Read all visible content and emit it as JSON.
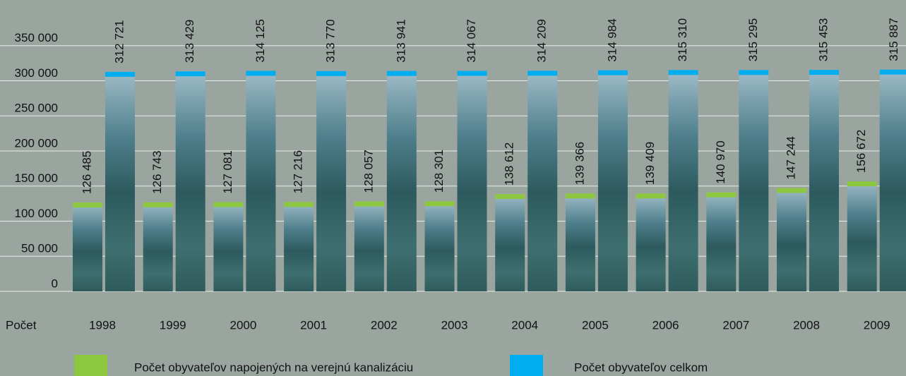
{
  "chart_data": {
    "type": "bar",
    "categories": [
      "1998",
      "1999",
      "2000",
      "2001",
      "2002",
      "2003",
      "2004",
      "2005",
      "2006",
      "2007",
      "2008",
      "2009"
    ],
    "x_label": "Počet",
    "series": [
      {
        "name": "Počet obyvateľov napojených na verejnú kanalizáciu",
        "color": "#8dc63f",
        "values": [
          126485,
          126743,
          127081,
          127216,
          128057,
          128301,
          138612,
          139366,
          139409,
          140970,
          147244,
          156672
        ],
        "value_labels": [
          "126 485",
          "126 743",
          "127 081",
          "127 216",
          "128 057",
          "128 301",
          "138 612",
          "139 366",
          "139 409",
          "140 970",
          "147 244",
          "156 672"
        ]
      },
      {
        "name": "Počet obyvateľov celkom",
        "color": "#00aeef",
        "values": [
          312721,
          313429,
          314125,
          313770,
          313941,
          314067,
          314209,
          314984,
          315310,
          315295,
          315453,
          315887
        ],
        "value_labels": [
          "312 721",
          "313 429",
          "314 125",
          "313 770",
          "313 941",
          "314 067",
          "314 209",
          "314 984",
          "315 310",
          "315 295",
          "315 453",
          "315 887"
        ]
      }
    ],
    "ylim": [
      0,
      400000
    ],
    "yticks": [
      0,
      {
        "value": 50000,
        "label": "50 000"
      },
      {
        "value": 100000,
        "label": "100 000"
      },
      {
        "value": 150000,
        "label": "150 000"
      },
      {
        "value": 200000,
        "label": "200 000"
      },
      {
        "value": 250000,
        "label": "250 000"
      },
      {
        "value": 300000,
        "label": "300 000"
      },
      {
        "value": 350000,
        "label": "350 000"
      }
    ],
    "grid": true
  }
}
